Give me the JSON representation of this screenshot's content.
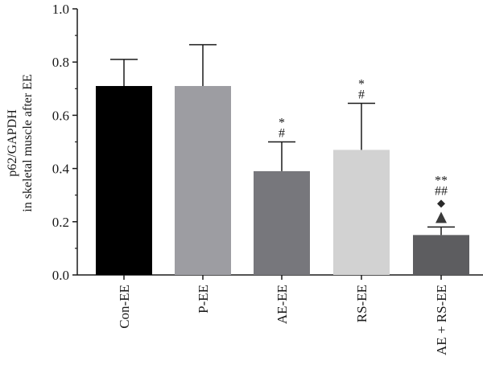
{
  "chart_data": {
    "type": "bar",
    "categories": [
      "Con-EE",
      "P-EE",
      "AE-EE",
      "RS-EE",
      "AE + RS-EE"
    ],
    "values": [
      0.71,
      0.71,
      0.39,
      0.47,
      0.15
    ],
    "errors": [
      0.1,
      0.155,
      0.11,
      0.175,
      0.03
    ],
    "bar_colors": [
      "#000000",
      "#9d9da2",
      "#77777c",
      "#d2d2d2",
      "#5d5d60"
    ],
    "annotations": [
      [],
      [],
      [
        "*",
        "#"
      ],
      [
        "*",
        "#"
      ],
      [
        "**",
        "##",
        "◆",
        "▲"
      ]
    ],
    "ylabel_line1": "p62/GAPDH",
    "ylabel_line2": "in skeletal muscle after EE",
    "ylim": [
      0,
      1.0
    ],
    "yticks": [
      "0.0",
      "0.2",
      "0.4",
      "0.6",
      "0.8",
      "1.0"
    ],
    "grid": false
  }
}
